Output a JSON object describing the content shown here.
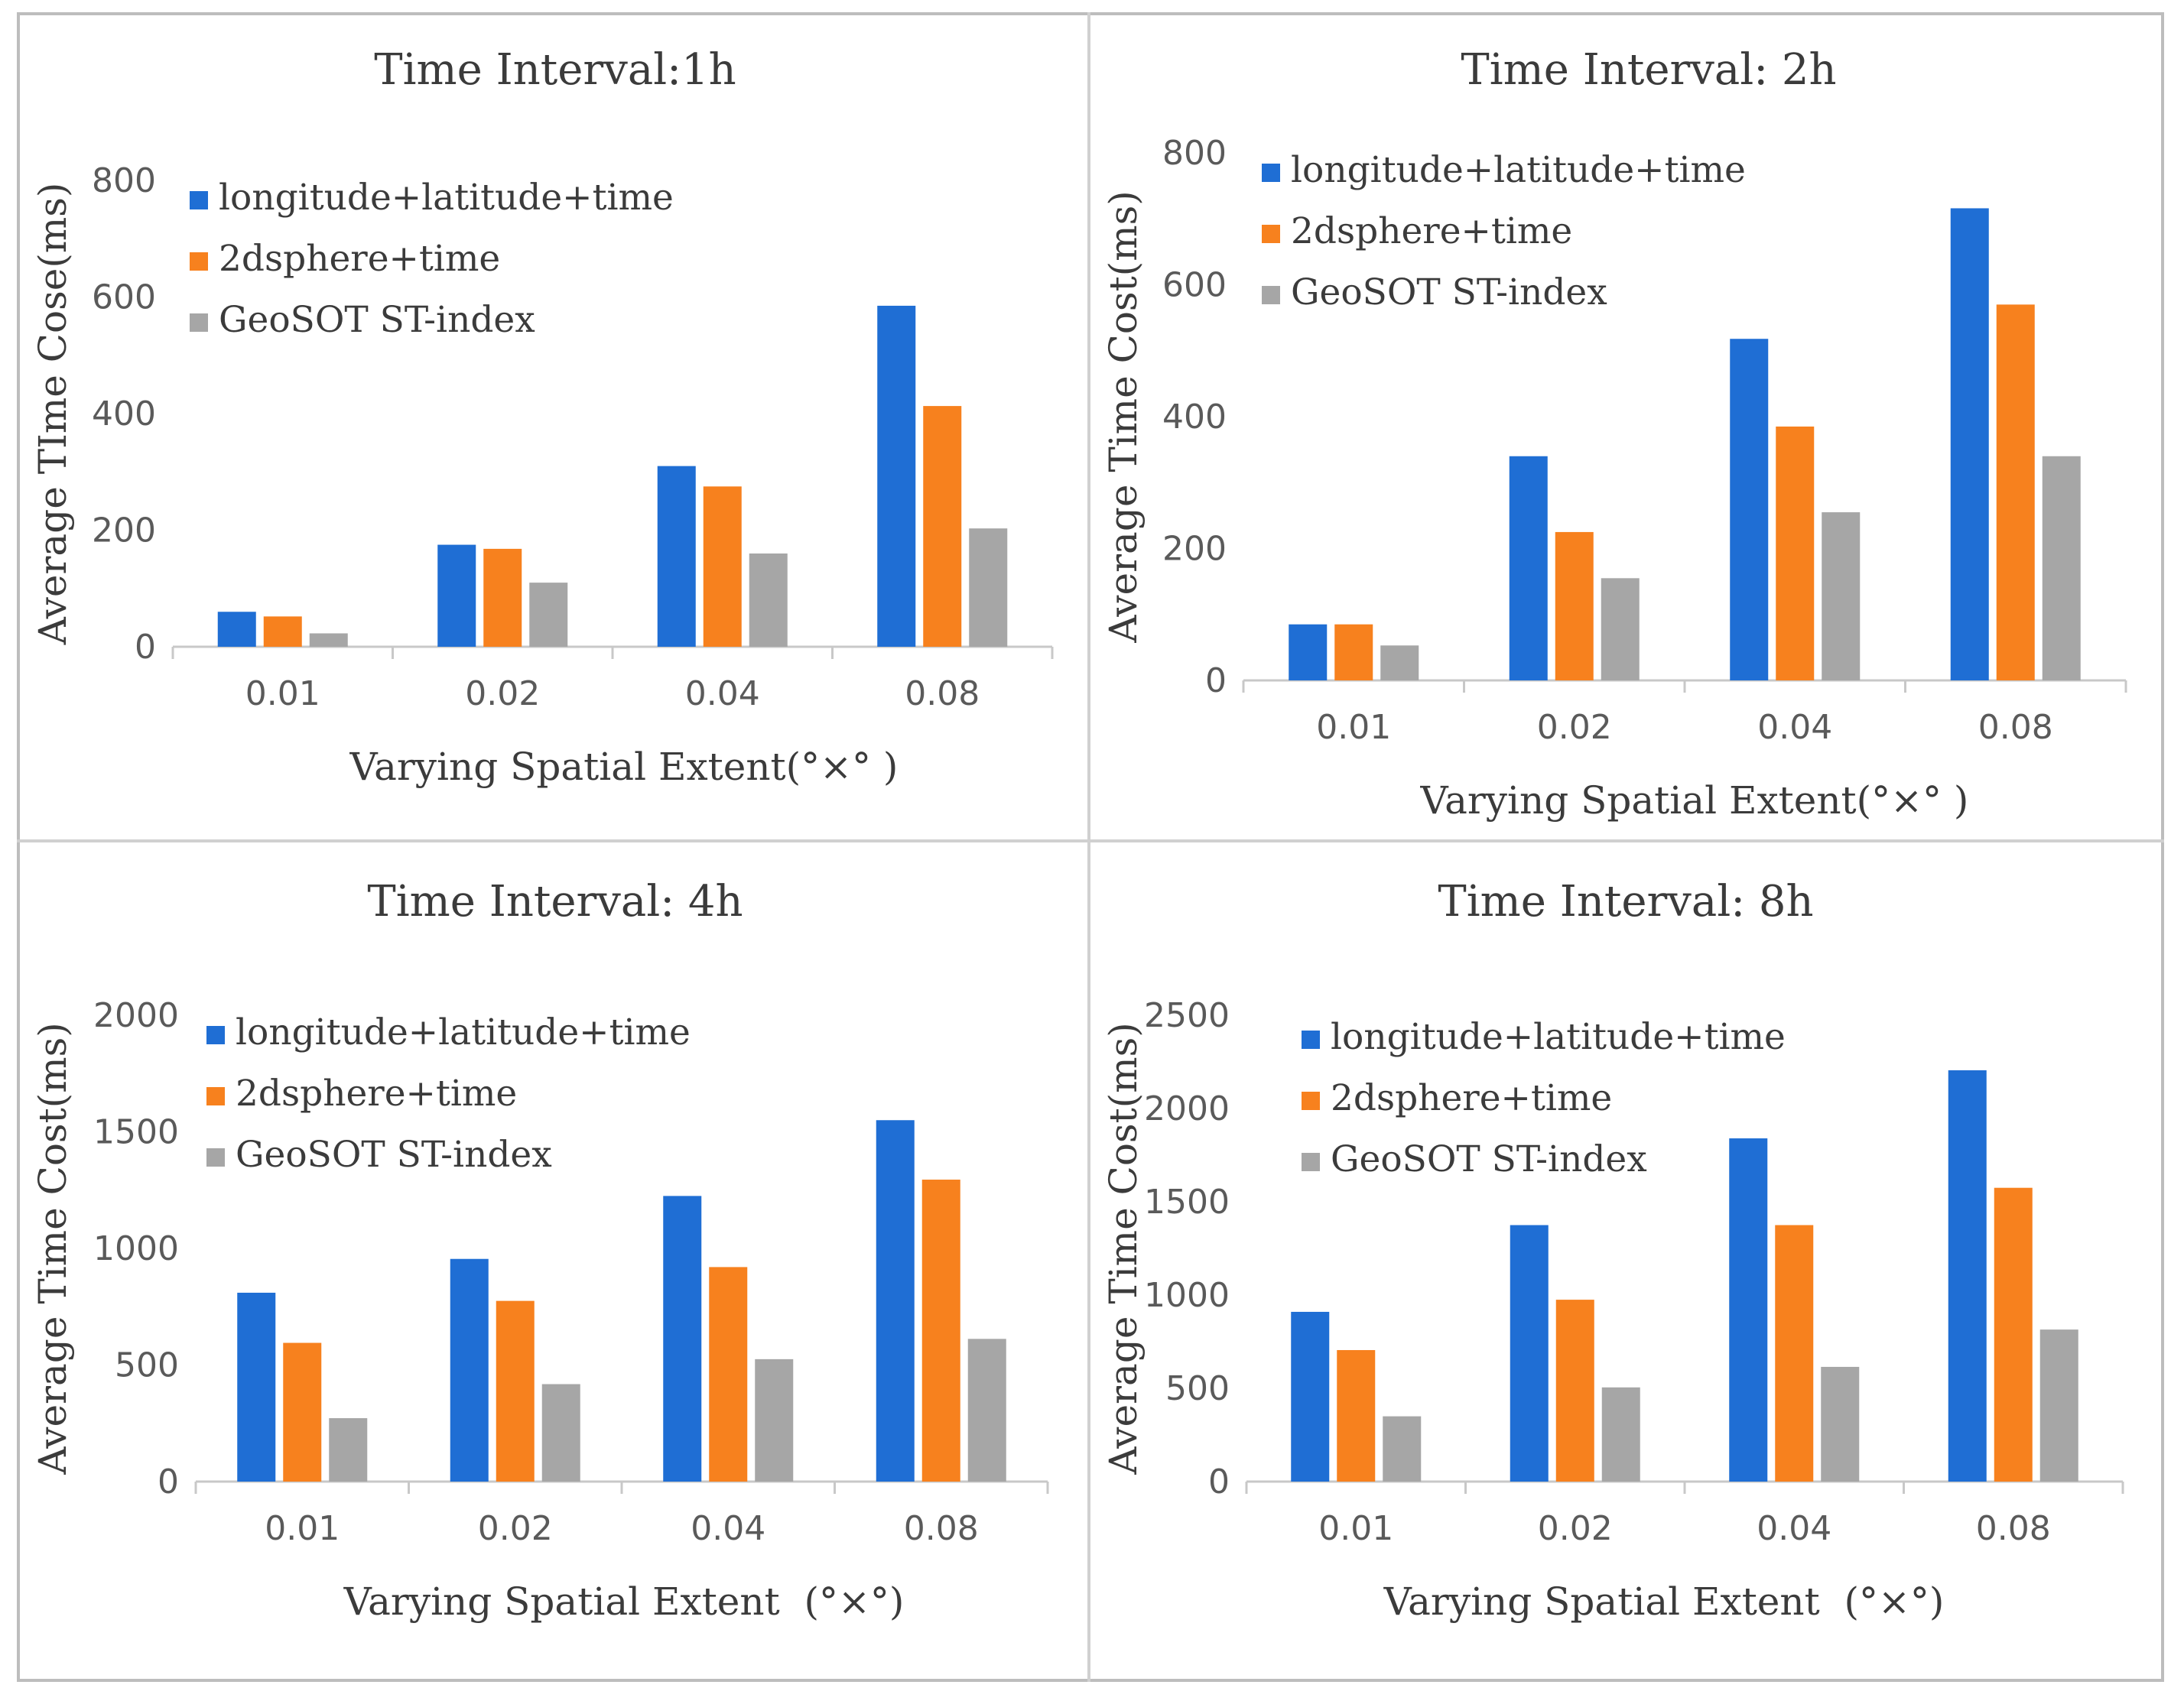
{
  "chart_data": [
    {
      "type": "bar",
      "title": "Time Interval:1h",
      "xlabel": "Varying Spatial Extent(°×° )",
      "ylabel": "Average TIme Cose(ms)",
      "ylim": [
        0,
        800
      ],
      "yticks": [
        0,
        200,
        400,
        600,
        800
      ],
      "categories": [
        "0.01",
        "0.02",
        "0.04",
        "0.08"
      ],
      "series": [
        {
          "name": "longitude+latitude+time",
          "color": "#1f6ed4",
          "values": [
            60,
            175,
            310,
            585
          ]
        },
        {
          "name": "2dsphere+time",
          "color": "#f7811e",
          "values": [
            52,
            168,
            275,
            413
          ]
        },
        {
          "name": "GeoSOT ST-index",
          "color": "#a6a6a6",
          "values": [
            23,
            110,
            160,
            203
          ]
        }
      ],
      "legend_position": "top-left"
    },
    {
      "type": "bar",
      "title": "Time Interval: 2h",
      "xlabel": "Varying Spatial Extent(°×° )",
      "ylabel": "Average Time Cost(ms)",
      "ylim": [
        0,
        800
      ],
      "yticks": [
        0,
        200,
        400,
        600,
        800
      ],
      "categories": [
        "0.01",
        "0.02",
        "0.04",
        "0.08"
      ],
      "series": [
        {
          "name": "longitude+latitude+time",
          "color": "#1f6ed4",
          "values": [
            85,
            340,
            518,
            716
          ]
        },
        {
          "name": "2dsphere+time",
          "color": "#f7811e",
          "values": [
            85,
            225,
            385,
            570
          ]
        },
        {
          "name": "GeoSOT ST-index",
          "color": "#a6a6a6",
          "values": [
            53,
            155,
            255,
            340
          ]
        }
      ],
      "legend_position": "top-left"
    },
    {
      "type": "bar",
      "title": "Time Interval: 4h",
      "xlabel": "Varying Spatial Extent  (°×°)",
      "ylabel": "Average Time Cost(ms)",
      "ylim": [
        0,
        2000
      ],
      "yticks": [
        0,
        500,
        1000,
        1500,
        2000
      ],
      "categories": [
        "0.01",
        "0.02",
        "0.04",
        "0.08"
      ],
      "series": [
        {
          "name": "longitude+latitude+time",
          "color": "#1f6ed4",
          "values": [
            810,
            955,
            1225,
            1550
          ]
        },
        {
          "name": "2dsphere+time",
          "color": "#f7811e",
          "values": [
            595,
            775,
            920,
            1295
          ]
        },
        {
          "name": "GeoSOT ST-index",
          "color": "#a6a6a6",
          "values": [
            272,
            418,
            525,
            612
          ]
        }
      ],
      "legend_position": "top-left"
    },
    {
      "type": "bar",
      "title": "Time Interval: 8h",
      "xlabel": "Varying Spatial Extent  (°×°)",
      "ylabel": "Average Time Cost(ms)",
      "ylim": [
        0,
        2500
      ],
      "yticks": [
        0,
        500,
        1000,
        1500,
        2000,
        2500
      ],
      "categories": [
        "0.01",
        "0.02",
        "0.04",
        "0.08"
      ],
      "series": [
        {
          "name": "longitude+latitude+time",
          "color": "#1f6ed4",
          "values": [
            910,
            1375,
            1840,
            2205
          ]
        },
        {
          "name": "2dsphere+time",
          "color": "#f7811e",
          "values": [
            705,
            975,
            1375,
            1575
          ]
        },
        {
          "name": "GeoSOT ST-index",
          "color": "#a6a6a6",
          "values": [
            350,
            505,
            615,
            815
          ]
        }
      ],
      "legend_position": "top-left"
    }
  ]
}
